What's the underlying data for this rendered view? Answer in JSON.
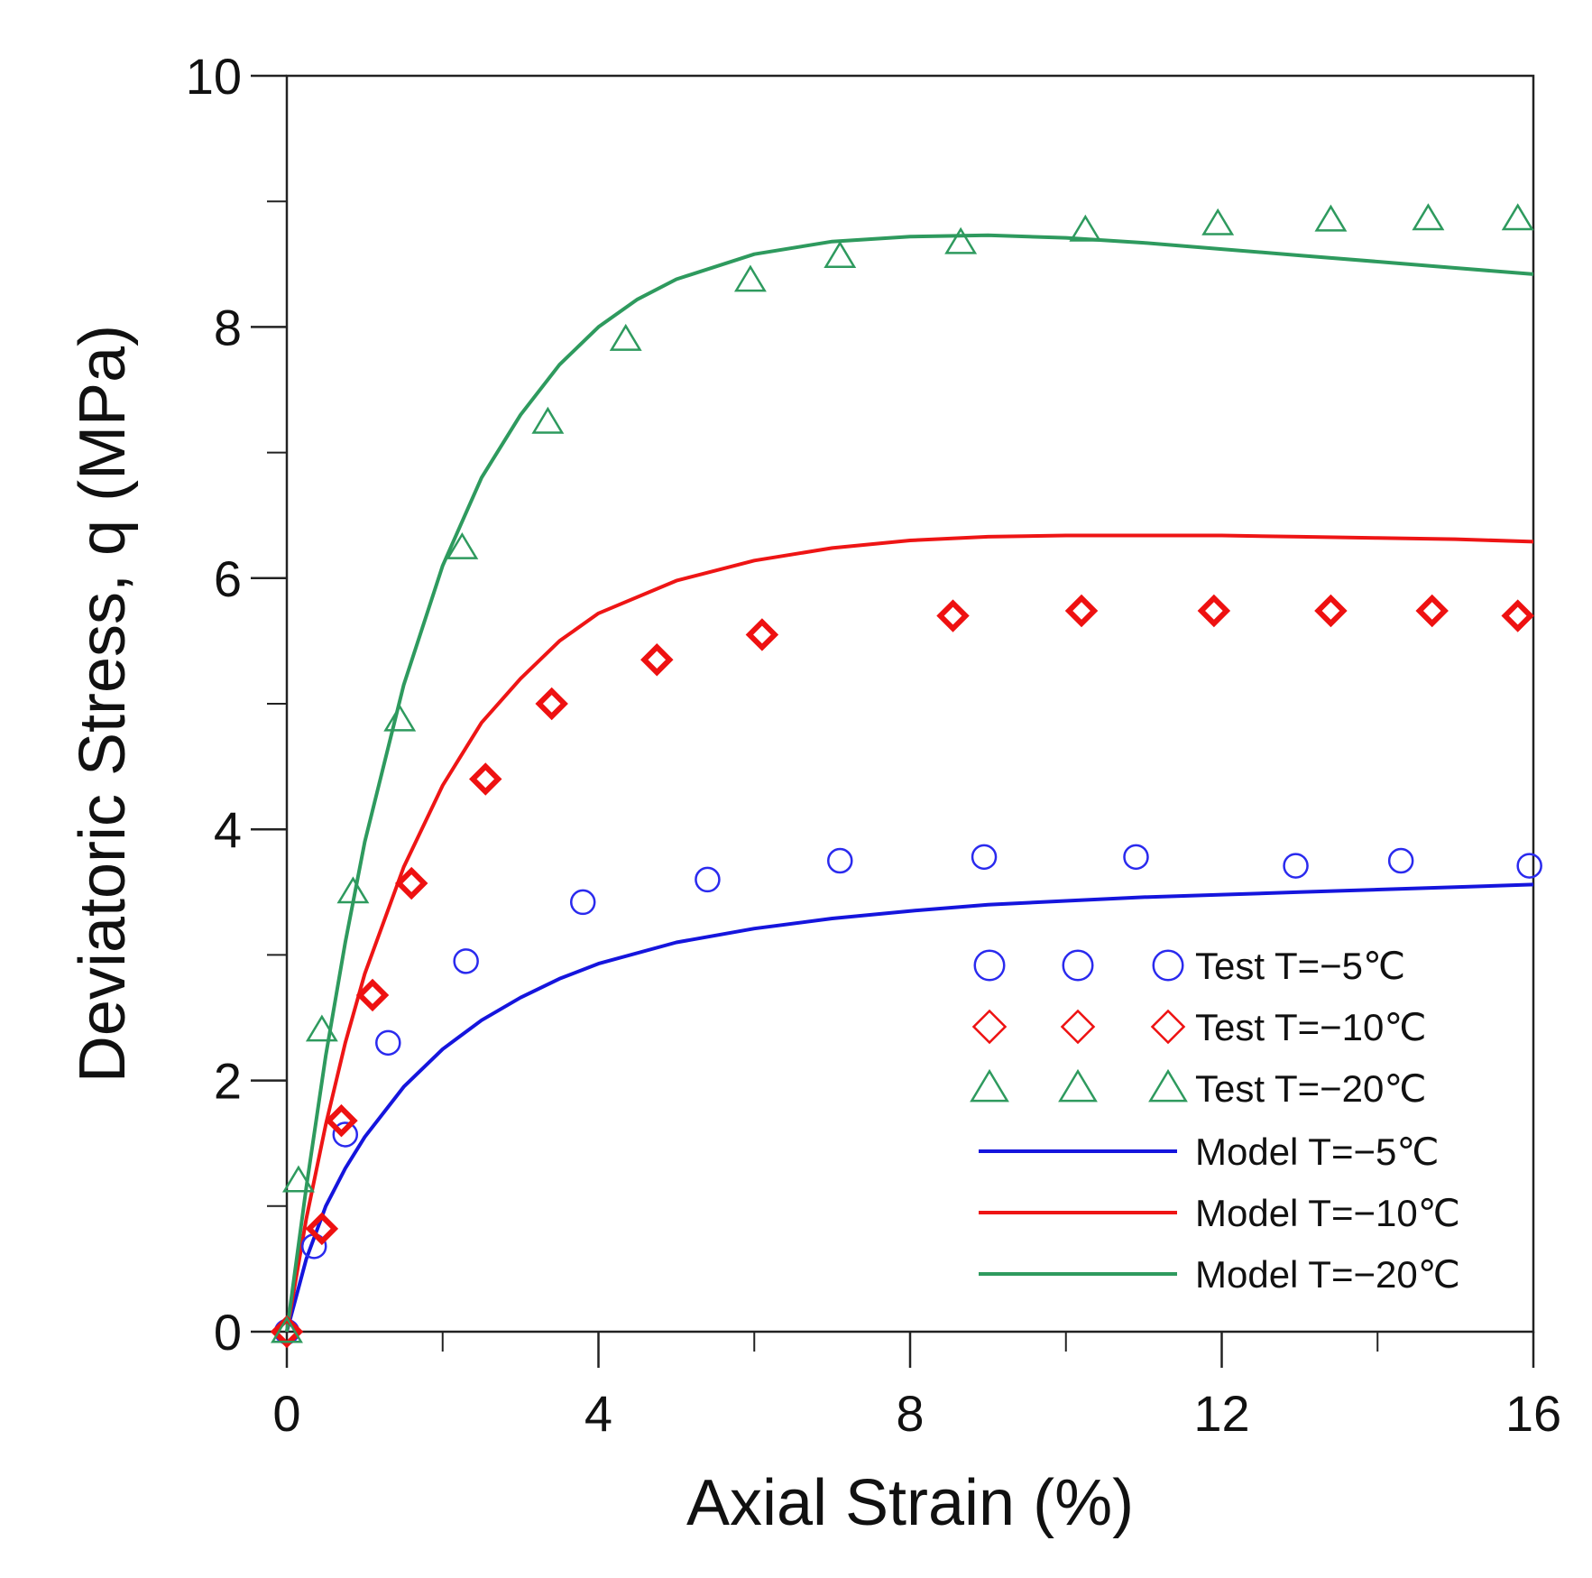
{
  "chart_data": {
    "type": "scatter",
    "title": "",
    "xlabel": "Axial Strain (%)",
    "ylabel": "Deviatoric Stress, q (MPa)",
    "xlim": [
      0,
      16
    ],
    "ylim": [
      0,
      10
    ],
    "x_major_ticks": [
      0,
      4,
      8,
      12,
      16
    ],
    "x_minor_ticks": [
      2,
      6,
      10,
      14
    ],
    "y_major_ticks": [
      0,
      2,
      4,
      6,
      8,
      10
    ],
    "y_minor_ticks": [
      1,
      3,
      5,
      7,
      9
    ],
    "grid": false,
    "legend_position": "bottom-right",
    "series": [
      {
        "name": "Test  T=−5℃",
        "kind": "markers",
        "marker": "circle",
        "color": "#2a2aee",
        "x": [
          0,
          0.35,
          0.75,
          1.3,
          2.3,
          3.8,
          5.4,
          7.1,
          8.95,
          10.9,
          12.95,
          14.3,
          15.95
        ],
        "y": [
          0,
          0.68,
          1.57,
          2.3,
          2.95,
          3.42,
          3.6,
          3.75,
          3.78,
          3.78,
          3.71,
          3.75,
          3.71
        ]
      },
      {
        "name": "Test  T=−10℃",
        "kind": "markers",
        "marker": "diamond",
        "color": "#ee1111",
        "x": [
          0,
          0.45,
          0.7,
          1.1,
          1.6,
          2.55,
          3.4,
          4.75,
          6.1,
          8.55,
          10.2,
          11.9,
          13.4,
          14.7,
          15.8
        ],
        "y": [
          0,
          0.82,
          1.68,
          2.68,
          3.57,
          4.4,
          5.0,
          5.35,
          5.55,
          5.7,
          5.74,
          5.74,
          5.74,
          5.74,
          5.7
        ],
        "bold_markers": true
      },
      {
        "name": "Test  T=−20℃",
        "kind": "markers",
        "marker": "triangle",
        "color": "#2e9a5e",
        "x": [
          0,
          0.15,
          0.45,
          0.85,
          1.45,
          2.25,
          3.35,
          4.35,
          5.95,
          7.1,
          8.65,
          10.25,
          11.95,
          13.4,
          14.65,
          15.8
        ],
        "y": [
          0,
          1.2,
          2.4,
          3.5,
          4.87,
          6.24,
          7.24,
          7.9,
          8.37,
          8.56,
          8.67,
          8.77,
          8.82,
          8.85,
          8.86,
          8.86
        ]
      },
      {
        "name": "Model T=−5℃",
        "kind": "line",
        "color": "#1515dd",
        "x": [
          0,
          0.25,
          0.5,
          0.75,
          1,
          1.5,
          2,
          2.5,
          3,
          3.5,
          4,
          5,
          6,
          7,
          8,
          9,
          10,
          11,
          12,
          13,
          14,
          15,
          16
        ],
        "y": [
          0,
          0.58,
          1.0,
          1.3,
          1.55,
          1.95,
          2.25,
          2.48,
          2.66,
          2.81,
          2.93,
          3.1,
          3.21,
          3.29,
          3.35,
          3.4,
          3.43,
          3.46,
          3.48,
          3.5,
          3.52,
          3.54,
          3.56
        ]
      },
      {
        "name": "Model T=−10℃",
        "kind": "line",
        "color": "#ee1515",
        "x": [
          0,
          0.25,
          0.5,
          0.75,
          1,
          1.5,
          2,
          2.5,
          3,
          3.5,
          4,
          5,
          6,
          7,
          8,
          9,
          10,
          11,
          12,
          13,
          14,
          15,
          16
        ],
        "y": [
          0,
          0.9,
          1.65,
          2.3,
          2.85,
          3.7,
          4.35,
          4.85,
          5.2,
          5.5,
          5.72,
          5.98,
          6.14,
          6.24,
          6.3,
          6.33,
          6.34,
          6.34,
          6.34,
          6.33,
          6.32,
          6.31,
          6.29
        ]
      },
      {
        "name": "Model T=−20℃",
        "kind": "line",
        "color": "#2e9a5e",
        "x": [
          0,
          0.25,
          0.5,
          0.75,
          1,
          1.5,
          2,
          2.5,
          3,
          3.5,
          4,
          4.5,
          5,
          6,
          7,
          8,
          9,
          10,
          11,
          12,
          13,
          14,
          15,
          16
        ],
        "y": [
          0,
          1.15,
          2.2,
          3.1,
          3.9,
          5.15,
          6.1,
          6.8,
          7.3,
          7.7,
          8.0,
          8.22,
          8.38,
          8.58,
          8.68,
          8.72,
          8.73,
          8.71,
          8.67,
          8.62,
          8.57,
          8.52,
          8.47,
          8.42
        ]
      }
    ]
  }
}
